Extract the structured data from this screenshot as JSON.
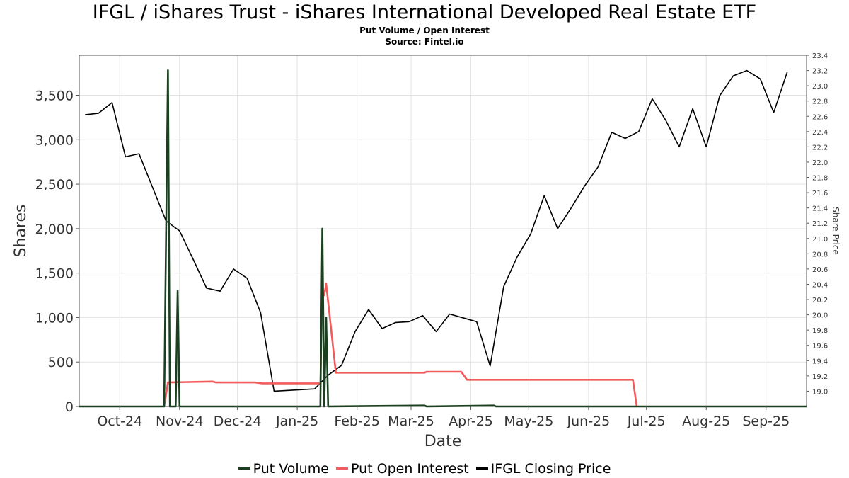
{
  "chart_data": {
    "type": "line",
    "title": "IFGL / iShares Trust - iShares International Developed Real Estate ETF",
    "subtitle": "Put Volume / Open Interest",
    "source": "Source: Fintel.io",
    "xlabel": "Date",
    "ylabel": "Shares",
    "y2label": "Share Price",
    "x_range": [
      "2024-09-10",
      "2025-09-22"
    ],
    "ylim": [
      0,
      3950
    ],
    "y2lim": [
      18.8,
      23.4
    ],
    "x_tick_labels": [
      {
        "label": "Oct-24",
        "date": "2024-10-01"
      },
      {
        "label": "Nov-24",
        "date": "2024-11-01"
      },
      {
        "label": "Dec-24",
        "date": "2024-12-01"
      },
      {
        "label": "Jan-25",
        "date": "2025-01-01"
      },
      {
        "label": "Feb-25",
        "date": "2025-02-01"
      },
      {
        "label": "Mar-25",
        "date": "2025-03-01"
      },
      {
        "label": "Apr-25",
        "date": "2025-04-01"
      },
      {
        "label": "May-25",
        "date": "2025-05-01"
      },
      {
        "label": "Jun-25",
        "date": "2025-06-01"
      },
      {
        "label": "Jul-25",
        "date": "2025-07-01"
      },
      {
        "label": "Aug-25",
        "date": "2025-08-01"
      },
      {
        "label": "Sep-25",
        "date": "2025-09-01"
      }
    ],
    "y_ticks": [
      {
        "value": 0,
        "label": "0"
      },
      {
        "value": 500,
        "label": "500"
      },
      {
        "value": 1000,
        "label": "1,000"
      },
      {
        "value": 1500,
        "label": "1,500"
      },
      {
        "value": 2000,
        "label": "2,000"
      },
      {
        "value": 2500,
        "label": "2,500"
      },
      {
        "value": 3000,
        "label": "3,000"
      },
      {
        "value": 3500,
        "label": "3,500"
      }
    ],
    "y2_ticks": [
      {
        "value": 19.0,
        "label": "19.0"
      },
      {
        "value": 19.2,
        "label": "19.2"
      },
      {
        "value": 19.4,
        "label": "19.4"
      },
      {
        "value": 19.6,
        "label": "19.6"
      },
      {
        "value": 19.8,
        "label": "19.8"
      },
      {
        "value": 20.0,
        "label": "20.0"
      },
      {
        "value": 20.2,
        "label": "20.2"
      },
      {
        "value": 20.4,
        "label": "20.4"
      },
      {
        "value": 20.6,
        "label": "20.6"
      },
      {
        "value": 20.8,
        "label": "20.8"
      },
      {
        "value": 21.0,
        "label": "21.0"
      },
      {
        "value": 21.2,
        "label": "21.2"
      },
      {
        "value": 21.4,
        "label": "21.4"
      },
      {
        "value": 21.6,
        "label": "21.6"
      },
      {
        "value": 21.8,
        "label": "21.8"
      },
      {
        "value": 22.0,
        "label": "22.0"
      },
      {
        "value": 22.2,
        "label": "22.2"
      },
      {
        "value": 22.4,
        "label": "22.4"
      },
      {
        "value": 22.6,
        "label": "22.6"
      },
      {
        "value": 22.8,
        "label": "22.8"
      },
      {
        "value": 23.0,
        "label": "23.0"
      },
      {
        "value": 23.2,
        "label": "23.2"
      },
      {
        "value": 23.4,
        "label": "23.4"
      }
    ],
    "grid": true,
    "legend_placement": "bottom",
    "series": [
      {
        "name": "Put Volume",
        "color": "#1b4020",
        "axis": "left",
        "points": [
          [
            "2024-09-10",
            0
          ],
          [
            "2024-10-24",
            0
          ],
          [
            "2024-10-26",
            3780
          ],
          [
            "2024-10-27",
            0
          ],
          [
            "2024-10-30",
            0
          ],
          [
            "2024-10-31",
            1300
          ],
          [
            "2024-11-01",
            0
          ],
          [
            "2025-01-13",
            0
          ],
          [
            "2025-01-14",
            2000
          ],
          [
            "2025-01-15",
            0
          ],
          [
            "2025-01-16",
            1000
          ],
          [
            "2025-01-17",
            0
          ],
          [
            "2025-03-08",
            10
          ],
          [
            "2025-03-09",
            0
          ],
          [
            "2025-04-13",
            10
          ],
          [
            "2025-04-14",
            0
          ],
          [
            "2025-09-22",
            0
          ]
        ]
      },
      {
        "name": "Put Open Interest",
        "color": "#f25b5b",
        "axis": "left",
        "points": [
          [
            "2024-10-24",
            0
          ],
          [
            "2024-10-26",
            270
          ],
          [
            "2024-11-18",
            280
          ],
          [
            "2024-11-20",
            270
          ],
          [
            "2024-12-10",
            270
          ],
          [
            "2024-12-14",
            260
          ],
          [
            "2025-01-13",
            260
          ],
          [
            "2025-01-14",
            1250
          ],
          [
            "2025-01-15",
            1250
          ],
          [
            "2025-01-16",
            1380
          ],
          [
            "2025-01-21",
            380
          ],
          [
            "2025-03-08",
            380
          ],
          [
            "2025-03-09",
            390
          ],
          [
            "2025-03-27",
            390
          ],
          [
            "2025-03-30",
            300
          ],
          [
            "2025-06-24",
            300
          ],
          [
            "2025-06-26",
            0
          ]
        ]
      },
      {
        "name": "IFGL Closing Price",
        "color": "#000000",
        "axis": "right",
        "points": [
          [
            "2024-09-13",
            22.62
          ],
          [
            "2024-09-20",
            22.64
          ],
          [
            "2024-09-27",
            22.78
          ],
          [
            "2024-10-04",
            22.07
          ],
          [
            "2024-10-11",
            22.11
          ],
          [
            "2024-10-25",
            21.23
          ],
          [
            "2024-11-01",
            21.1
          ],
          [
            "2024-11-08",
            20.73
          ],
          [
            "2024-11-15",
            20.35
          ],
          [
            "2024-11-22",
            20.31
          ],
          [
            "2024-11-29",
            20.6
          ],
          [
            "2024-12-06",
            20.48
          ],
          [
            "2024-12-13",
            20.03
          ],
          [
            "2024-12-20",
            19.0
          ],
          [
            "2025-01-10",
            19.03
          ],
          [
            "2025-01-17",
            19.21
          ],
          [
            "2025-01-24",
            19.34
          ],
          [
            "2025-01-31",
            19.78
          ],
          [
            "2025-02-07",
            20.07
          ],
          [
            "2025-02-14",
            19.82
          ],
          [
            "2025-02-21",
            19.9
          ],
          [
            "2025-02-28",
            19.91
          ],
          [
            "2025-03-07",
            19.99
          ],
          [
            "2025-03-14",
            19.78
          ],
          [
            "2025-03-21",
            20.01
          ],
          [
            "2025-04-04",
            19.91
          ],
          [
            "2025-04-11",
            19.33
          ],
          [
            "2025-04-18",
            20.37
          ],
          [
            "2025-04-25",
            20.76
          ],
          [
            "2025-05-02",
            21.06
          ],
          [
            "2025-05-09",
            21.56
          ],
          [
            "2025-05-16",
            21.13
          ],
          [
            "2025-05-23",
            21.4
          ],
          [
            "2025-05-30",
            21.69
          ],
          [
            "2025-06-06",
            21.94
          ],
          [
            "2025-06-13",
            22.39
          ],
          [
            "2025-06-20",
            22.31
          ],
          [
            "2025-06-27",
            22.4
          ],
          [
            "2025-07-04",
            22.83
          ],
          [
            "2025-07-11",
            22.55
          ],
          [
            "2025-07-18",
            22.2
          ],
          [
            "2025-07-25",
            22.7
          ],
          [
            "2025-08-01",
            22.2
          ],
          [
            "2025-08-08",
            22.87
          ],
          [
            "2025-08-15",
            23.13
          ],
          [
            "2025-08-22",
            23.2
          ],
          [
            "2025-08-29",
            23.09
          ],
          [
            "2025-09-05",
            22.65
          ],
          [
            "2025-09-12",
            23.18
          ]
        ]
      }
    ]
  }
}
